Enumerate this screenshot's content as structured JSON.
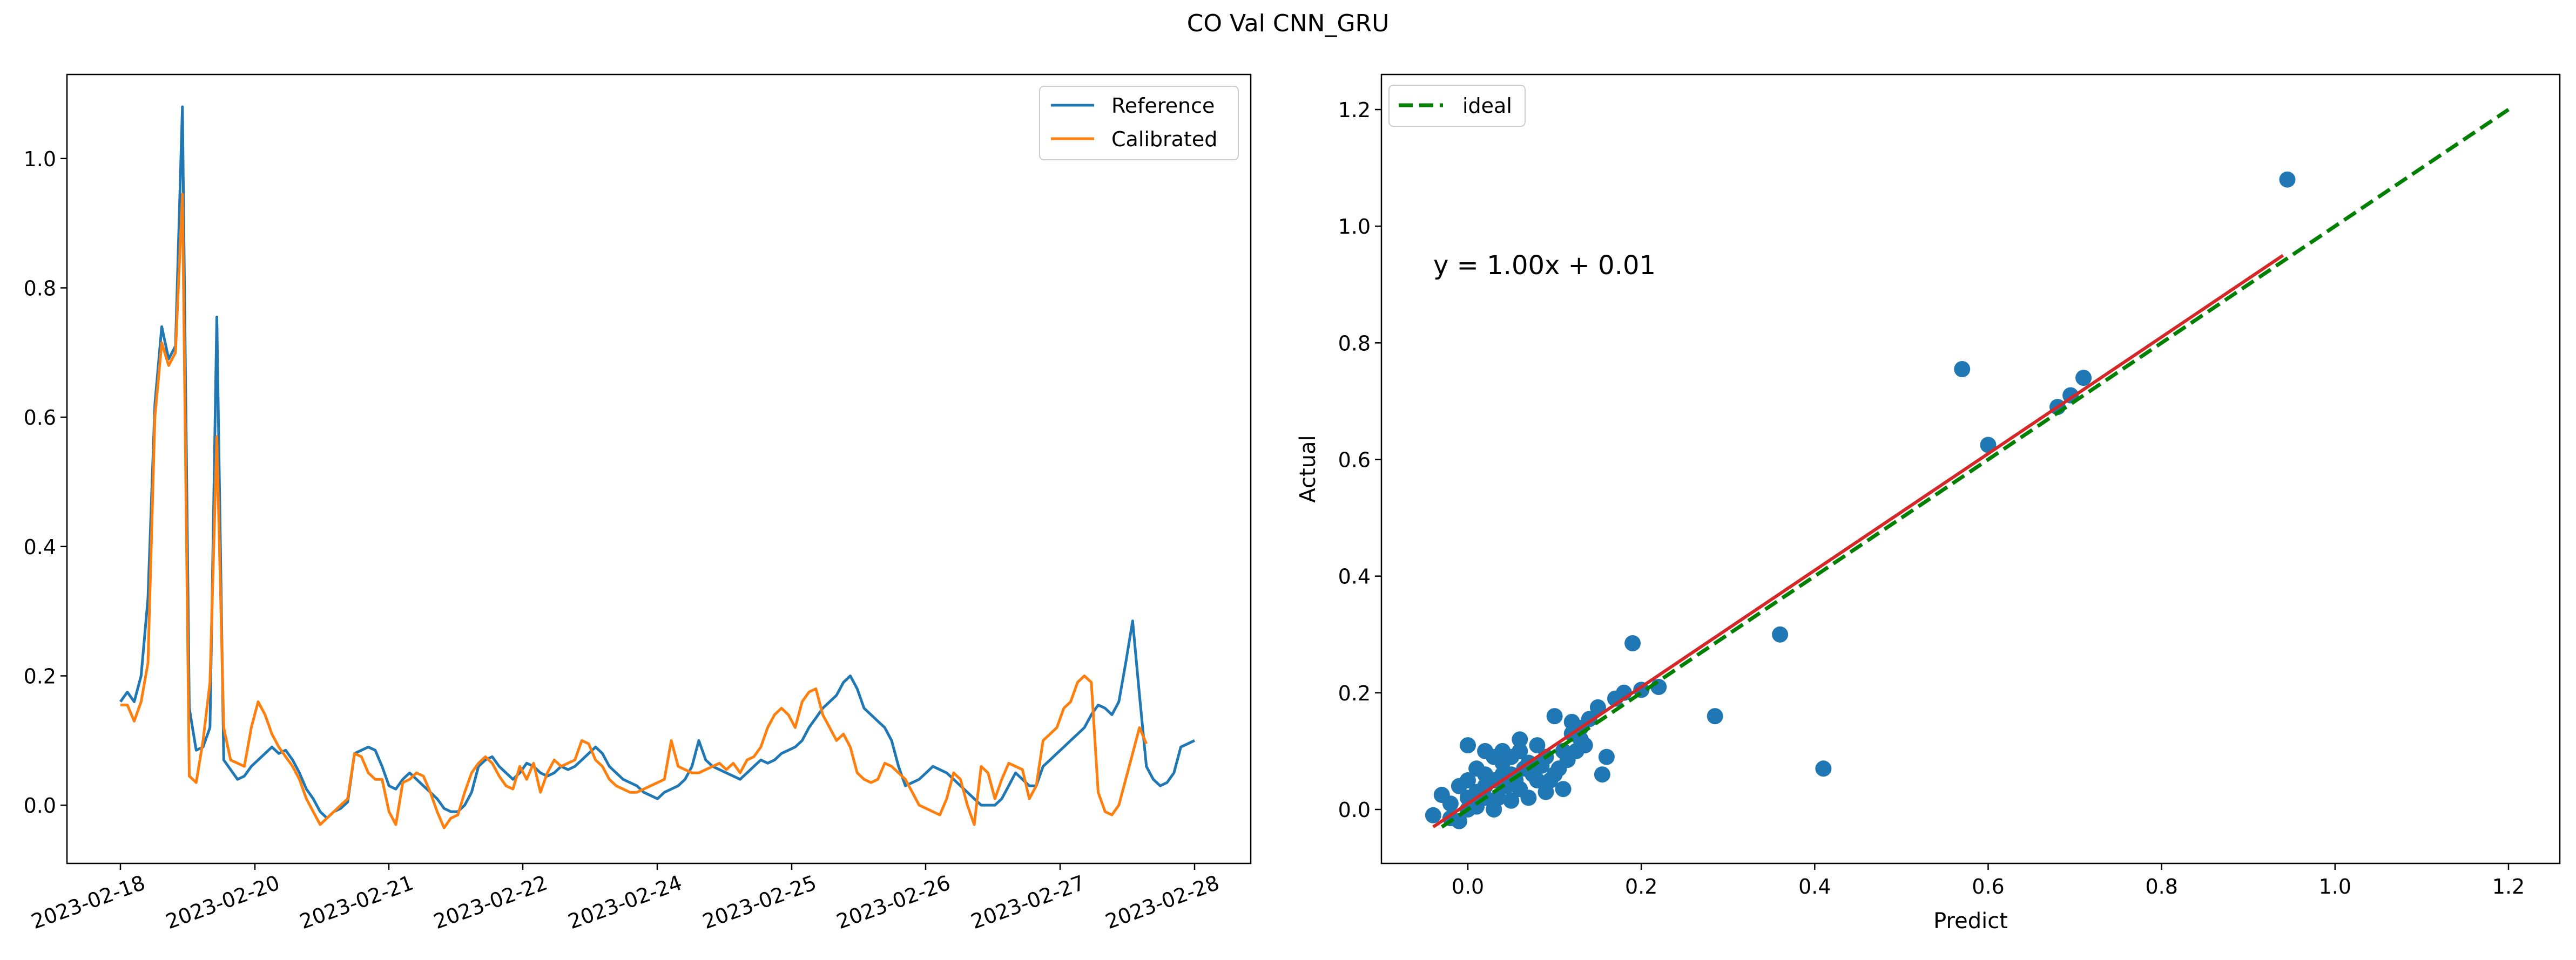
{
  "figure": {
    "title": "CO Val CNN_GRU"
  },
  "colors": {
    "reference": "#1f77b4",
    "calibrated": "#ff7f0e",
    "ideal": "#008000",
    "fit": "#d62728",
    "scatter": "#1f77b4"
  },
  "chart_data": [
    {
      "type": "line",
      "title": "",
      "xlabel": "",
      "ylabel": "",
      "x_axis_kind": "date",
      "x_tick_labels": [
        "2023-02-18",
        "2023-02-20",
        "2023-02-21",
        "2023-02-22",
        "2023-02-24",
        "2023-02-25",
        "2023-02-26",
        "2023-02-27",
        "2023-02-28"
      ],
      "y_ticks": [
        "0.0",
        "0.2",
        "0.4",
        "0.6",
        "0.8",
        "1.0"
      ],
      "ylim": [
        -0.09,
        1.13
      ],
      "legend_position": "top-right",
      "grid": false,
      "series": [
        {
          "name": "Reference",
          "values": [
            0.16,
            0.175,
            0.16,
            0.2,
            0.32,
            0.62,
            0.74,
            0.69,
            0.71,
            1.08,
            0.15,
            0.085,
            0.09,
            0.12,
            0.755,
            0.07,
            0.055,
            0.04,
            0.045,
            0.06,
            0.07,
            0.08,
            0.09,
            0.08,
            0.085,
            0.07,
            0.05,
            0.025,
            0.01,
            -0.01,
            -0.02,
            -0.01,
            -0.005,
            0.005,
            0.08,
            0.085,
            0.09,
            0.085,
            0.06,
            0.03,
            0.025,
            0.04,
            0.05,
            0.04,
            0.03,
            0.02,
            0.01,
            -0.005,
            -0.01,
            -0.01,
            0.0,
            0.02,
            0.06,
            0.07,
            0.075,
            0.06,
            0.05,
            0.04,
            0.05,
            0.065,
            0.06,
            0.05,
            0.045,
            0.05,
            0.06,
            0.055,
            0.06,
            0.07,
            0.08,
            0.09,
            0.08,
            0.06,
            0.05,
            0.04,
            0.035,
            0.03,
            0.02,
            0.015,
            0.01,
            0.02,
            0.025,
            0.03,
            0.04,
            0.06,
            0.1,
            0.07,
            0.06,
            0.055,
            0.05,
            0.045,
            0.04,
            0.05,
            0.06,
            0.07,
            0.065,
            0.07,
            0.08,
            0.085,
            0.09,
            0.1,
            0.12,
            0.135,
            0.15,
            0.16,
            0.17,
            0.19,
            0.2,
            0.18,
            0.15,
            0.14,
            0.13,
            0.12,
            0.1,
            0.06,
            0.03,
            0.035,
            0.04,
            0.05,
            0.06,
            0.055,
            0.05,
            0.04,
            0.03,
            0.02,
            0.01,
            0.0,
            0.0,
            0.0,
            0.01,
            0.03,
            0.05,
            0.04,
            0.03,
            0.03,
            0.06,
            0.07,
            0.08,
            0.09,
            0.1,
            0.11,
            0.12,
            0.14,
            0.155,
            0.15,
            0.14,
            0.16,
            0.22,
            0.285,
            0.17,
            0.06,
            0.04,
            0.03,
            0.035,
            0.05,
            0.09,
            0.095,
            0.1
          ],
          "x_range": [
            "2023-02-18",
            "2023-02-28"
          ]
        },
        {
          "name": "Calibrated",
          "values": [
            0.155,
            0.155,
            0.13,
            0.16,
            0.22,
            0.6,
            0.715,
            0.68,
            0.7,
            0.945,
            0.045,
            0.035,
            0.1,
            0.19,
            0.57,
            0.12,
            0.07,
            0.065,
            0.06,
            0.12,
            0.16,
            0.14,
            0.11,
            0.09,
            0.075,
            0.06,
            0.04,
            0.01,
            -0.01,
            -0.03,
            -0.02,
            -0.01,
            0.0,
            0.01,
            0.08,
            0.075,
            0.05,
            0.04,
            0.04,
            -0.01,
            -0.03,
            0.035,
            0.04,
            0.05,
            0.045,
            0.02,
            -0.01,
            -0.035,
            -0.02,
            -0.015,
            0.02,
            0.05,
            0.065,
            0.075,
            0.065,
            0.045,
            0.03,
            0.025,
            0.06,
            0.04,
            0.065,
            0.02,
            0.05,
            0.07,
            0.06,
            0.065,
            0.07,
            0.1,
            0.095,
            0.07,
            0.06,
            0.04,
            0.03,
            0.025,
            0.02,
            0.02,
            0.025,
            0.03,
            0.035,
            0.04,
            0.1,
            0.06,
            0.055,
            0.05,
            0.05,
            0.055,
            0.06,
            0.065,
            0.055,
            0.065,
            0.05,
            0.07,
            0.075,
            0.09,
            0.12,
            0.14,
            0.15,
            0.14,
            0.12,
            0.16,
            0.175,
            0.18,
            0.14,
            0.12,
            0.1,
            0.11,
            0.09,
            0.05,
            0.04,
            0.035,
            0.04,
            0.065,
            0.06,
            0.05,
            0.04,
            0.02,
            0.0,
            -0.005,
            -0.01,
            -0.015,
            0.01,
            0.05,
            0.04,
            0.0,
            -0.03,
            0.06,
            0.05,
            0.01,
            0.04,
            0.065,
            0.06,
            0.055,
            0.01,
            0.03,
            0.1,
            0.11,
            0.12,
            0.15,
            0.16,
            0.19,
            0.2,
            0.19,
            0.02,
            -0.01,
            -0.015,
            0.0,
            0.04,
            0.08,
            0.12,
            0.095
          ],
          "x_range": [
            "2023-02-18",
            "2023-02-28"
          ]
        }
      ]
    },
    {
      "type": "scatter",
      "title": "",
      "xlabel": "Predict",
      "ylabel": "Actual",
      "xlim": [
        -0.08,
        1.25
      ],
      "ylim": [
        -0.09,
        1.25
      ],
      "x_ticks": [
        "0.0",
        "0.2",
        "0.4",
        "0.6",
        "0.8",
        "1.0",
        "1.2"
      ],
      "y_ticks": [
        "0.0",
        "0.2",
        "0.4",
        "0.6",
        "0.8",
        "1.0",
        "1.2"
      ],
      "legend_position": "top-left",
      "grid": false,
      "annotation": "y = 1.00x + 0.01",
      "ideal": {
        "name": "ideal",
        "x": [
          -0.03,
          1.2
        ],
        "y": [
          -0.03,
          1.2
        ]
      },
      "fit": {
        "slope": 1.0,
        "intercept": 0.01,
        "x_range": [
          -0.04,
          0.94
        ]
      },
      "points": [
        [
          0.945,
          1.08
        ],
        [
          0.57,
          0.755
        ],
        [
          0.71,
          0.74
        ],
        [
          0.695,
          0.71
        ],
        [
          0.68,
          0.69
        ],
        [
          0.6,
          0.625
        ],
        [
          0.19,
          0.285
        ],
        [
          0.36,
          0.3
        ],
        [
          0.41,
          0.07
        ],
        [
          0.285,
          0.16
        ],
        [
          0.22,
          0.21
        ],
        [
          0.2,
          0.205
        ],
        [
          0.18,
          0.2
        ],
        [
          0.17,
          0.19
        ],
        [
          0.15,
          0.175
        ],
        [
          0.14,
          0.155
        ],
        [
          0.12,
          0.15
        ],
        [
          0.1,
          0.16
        ],
        [
          0.16,
          0.09
        ],
        [
          0.155,
          0.06
        ],
        [
          0.11,
          0.035
        ],
        [
          0.13,
          0.12
        ],
        [
          0.11,
          0.1
        ],
        [
          0.09,
          0.09
        ],
        [
          0.08,
          0.11
        ],
        [
          0.07,
          0.08
        ],
        [
          0.06,
          0.1
        ],
        [
          0.05,
          0.06
        ],
        [
          0.04,
          0.08
        ],
        [
          0.03,
          0.05
        ],
        [
          0.02,
          0.04
        ],
        [
          0.01,
          0.03
        ],
        [
          0.0,
          0.02
        ],
        [
          0.0,
          0.11
        ],
        [
          0.02,
          0.1
        ],
        [
          0.04,
          0.06
        ],
        [
          0.06,
          0.035
        ],
        [
          0.05,
          0.015
        ],
        [
          0.03,
          0.0
        ],
        [
          0.0,
          0.0
        ],
        [
          -0.02,
          0.01
        ],
        [
          -0.03,
          0.025
        ],
        [
          -0.04,
          -0.01
        ],
        [
          -0.02,
          -0.015
        ],
        [
          -0.01,
          -0.02
        ],
        [
          0.01,
          0.005
        ],
        [
          0.02,
          0.06
        ],
        [
          0.03,
          0.09
        ],
        [
          0.045,
          0.04
        ],
        [
          0.055,
          0.05
        ],
        [
          0.065,
          0.07
        ],
        [
          0.075,
          0.06
        ],
        [
          0.085,
          0.075
        ],
        [
          0.095,
          0.05
        ],
        [
          0.105,
          0.07
        ],
        [
          0.115,
          0.085
        ],
        [
          0.125,
          0.1
        ],
        [
          0.135,
          0.11
        ],
        [
          0.06,
          0.12
        ],
        [
          0.01,
          0.07
        ],
        [
          -0.01,
          0.04
        ],
        [
          0.035,
          0.02
        ],
        [
          0.07,
          0.02
        ],
        [
          0.09,
          0.03
        ],
        [
          0.08,
          0.05
        ],
        [
          0.1,
          0.06
        ],
        [
          0.04,
          0.1
        ],
        [
          0.02,
          0.02
        ],
        [
          0.0,
          0.05
        ],
        [
          0.05,
          0.09
        ],
        [
          0.12,
          0.13
        ],
        [
          0.13,
          0.14
        ]
      ]
    }
  ]
}
